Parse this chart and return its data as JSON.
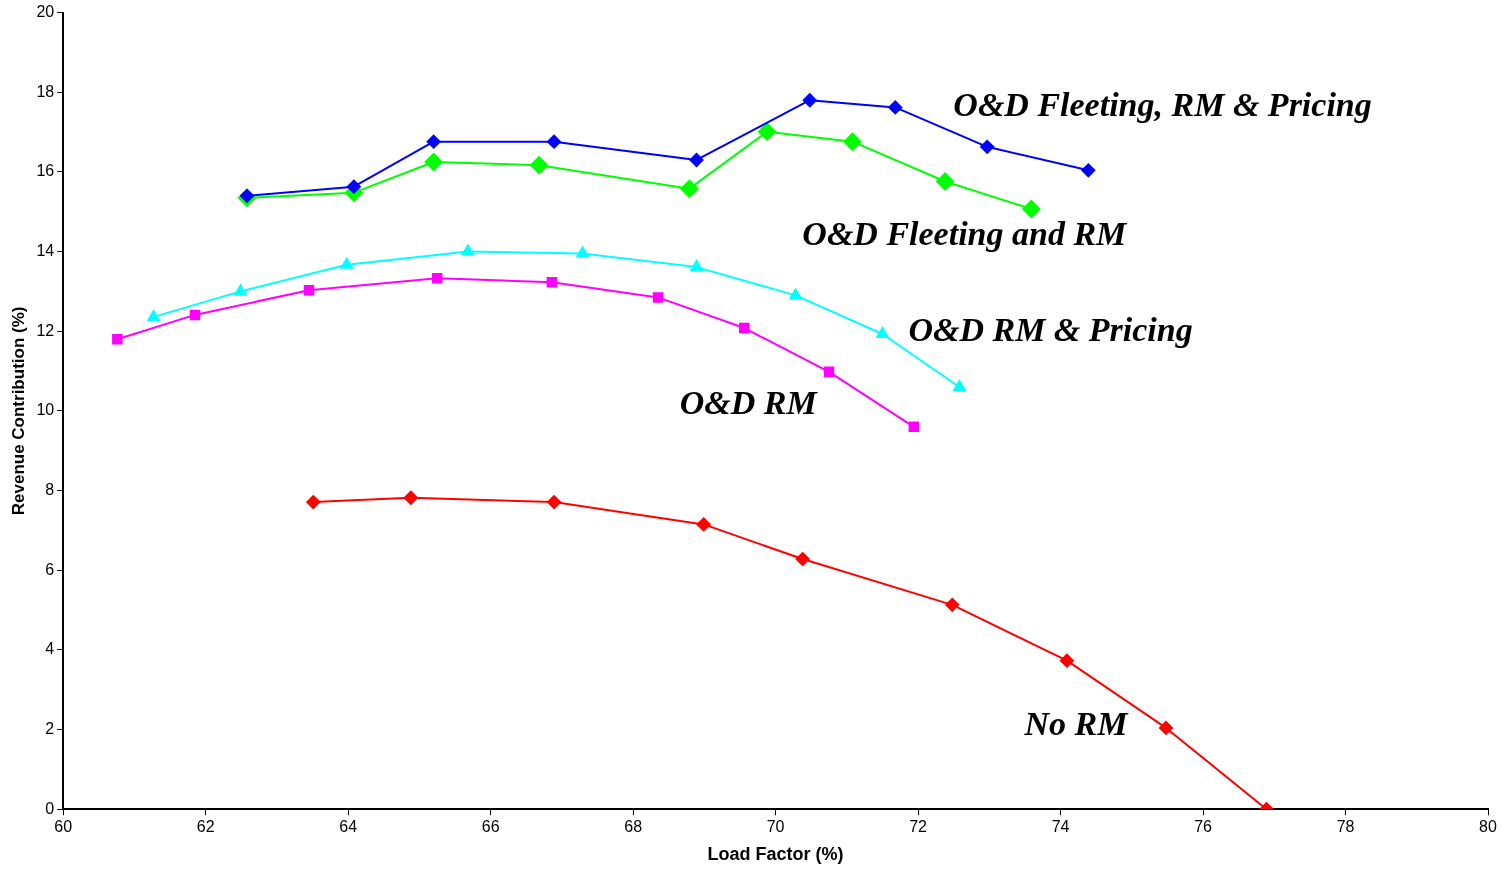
{
  "chart_data": {
    "type": "line",
    "xlabel": "Load Factor (%)",
    "ylabel": "Revenue Contribution (%)",
    "xlim": [
      60,
      80
    ],
    "xticks": [
      60,
      62,
      64,
      66,
      68,
      70,
      72,
      74,
      76,
      78,
      80
    ],
    "ylim": [
      0,
      20
    ],
    "yticks": [
      0,
      2,
      4,
      6,
      8,
      10,
      12,
      14,
      16,
      18,
      20
    ],
    "grid": false,
    "legend": false,
    "line_style": "solid",
    "series": [
      {
        "name": "O&D Fleeting, RM & Pricing",
        "color": "#0000ff",
        "marker": "diamond",
        "x": [
          62.58,
          64.08,
          65.2,
          66.89,
          68.89,
          70.48,
          71.68,
          72.97,
          74.39
        ],
        "values": [
          15.4,
          15.63,
          16.76,
          16.76,
          16.3,
          17.8,
          17.62,
          16.63,
          16.04
        ]
      },
      {
        "name": "O&D Fleeting and RM",
        "color": "#00ff00",
        "marker": "diamond",
        "x": [
          62.58,
          64.08,
          65.2,
          66.68,
          68.79,
          69.88,
          71.08,
          72.38,
          73.59
        ],
        "values": [
          15.35,
          15.48,
          16.25,
          16.17,
          15.58,
          17.01,
          16.76,
          15.76,
          15.07
        ]
      },
      {
        "name": "O&D RM & Pricing",
        "color": "#00ffff",
        "marker": "triangle",
        "x": [
          61.27,
          62.49,
          63.98,
          65.68,
          67.29,
          68.89,
          70.28,
          71.5,
          72.58
        ],
        "values": [
          12.36,
          13.0,
          13.67,
          14.0,
          13.95,
          13.61,
          12.9,
          11.93,
          10.6
        ]
      },
      {
        "name": "O&D RM",
        "color": "#ff00ff",
        "marker": "square",
        "x": [
          60.76,
          61.85,
          63.45,
          65.25,
          66.86,
          68.35,
          69.56,
          70.75,
          71.94
        ],
        "values": [
          11.8,
          12.41,
          13.03,
          13.33,
          13.23,
          12.85,
          12.08,
          10.98,
          9.6
        ]
      },
      {
        "name": "No RM",
        "color": "#ff0000",
        "marker": "diamond",
        "x": [
          63.51,
          64.88,
          66.89,
          68.99,
          70.38,
          72.48,
          74.09,
          75.48,
          76.89
        ],
        "values": [
          7.71,
          7.82,
          7.71,
          7.15,
          6.28,
          5.13,
          3.73,
          2.04,
          0
        ]
      }
    ]
  }
}
